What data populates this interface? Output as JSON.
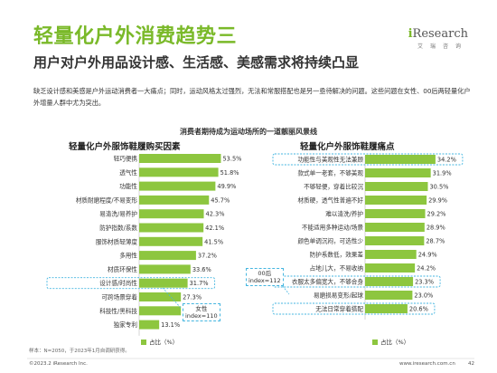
{
  "header": {
    "title": "轻量化户外消费趋势三",
    "subtitle": "用户对户外用品设计感、生活感、美感需求将持续凸显",
    "description": "缺乏设计感和美感是户外运动消费者一大痛点；同时，运动风格太过强烈，无法和常服搭配也是另一亟待解决的问题。这些问题在女性、00后两轻量化户外增量人群中尤为突出。"
  },
  "logo": {
    "brand_prefix": "i",
    "brand_rest": "Research",
    "cn": "艾瑞咨询"
  },
  "center_title": "消费者期待成为运动场所的一道靓丽风景线",
  "callouts": {
    "female": "女性\nindex=110",
    "post00": "00后\nindex=112"
  },
  "legend_label": "占比（%）",
  "note": "样本：N=2050，于2023年1月自调研获得。",
  "footer": {
    "copyright": "©2023.2 iResearch Inc.",
    "url": "www.iresearch.com.cn",
    "page": "42"
  },
  "colors": {
    "accent": "#7ab929",
    "bar": "#8dc63f",
    "highlight": "#45b6e0"
  },
  "chart_data": [
    {
      "type": "bar",
      "orientation": "horizontal",
      "title": "轻量化户外服饰鞋履购买因素",
      "categories": [
        "轻巧便携",
        "透气性",
        "功能性",
        "材质耐磨程度/不易变形",
        "易清洗/易养护",
        "防护指数/系数",
        "服饰材质轻薄度",
        "多用性",
        "材质环保性",
        "设计感/时尚性",
        "可跨场景穿着",
        "科技性/黑科技",
        "独家专利"
      ],
      "series": [
        {
          "name": "占比（%）",
          "values": [
            53.5,
            51.8,
            49.9,
            45.7,
            42.3,
            42.1,
            41.5,
            37.2,
            33.6,
            31.7,
            27.3,
            27.3,
            13.1
          ]
        }
      ],
      "value_labels": [
        "53.5%",
        "51.8%",
        "49.9%",
        "45.7%",
        "42.3%",
        "42.1%",
        "41.5%",
        "37.2%",
        "33.6%",
        "31.7%",
        "27.3%",
        "27.3%",
        "13.1%"
      ],
      "xlim": [
        0,
        55
      ],
      "highlighted": [
        "设计感/时尚性"
      ]
    },
    {
      "type": "bar",
      "orientation": "horizontal",
      "title": "轻量化户外服饰鞋履痛点",
      "categories": [
        "功能性与美观性无法兼顾",
        "款式单一老套，不够美观",
        "不够轻便，穿着比较沉",
        "材质硬，透气性普遍不好",
        "难以清洗/养护",
        "不能适用多种运动/场景",
        "颜色单调沉闷，可选性少",
        "防护系数低，效果差",
        "占地儿大，不易收纳",
        "衣服太多偏宽大，不够合身",
        "易磨损易变形/起球",
        "无法日常穿着搭配"
      ],
      "series": [
        {
          "name": "占比（%）",
          "values": [
            34.2,
            31.9,
            30.5,
            29.9,
            29.2,
            28.9,
            28.7,
            24.9,
            24.2,
            23.3,
            23.0,
            20.6
          ]
        }
      ],
      "value_labels": [
        "34.2%",
        "31.9%",
        "30.5%",
        "29.9%",
        "29.2%",
        "28.9%",
        "28.7%",
        "24.9%",
        "24.2%",
        "23.3%",
        "23.0%",
        "20.6%"
      ],
      "xlim": [
        0,
        36
      ],
      "highlighted": [
        "功能性与美观性无法兼顾",
        "衣服太多偏宽大，不够合身",
        "无法日常穿着搭配"
      ]
    }
  ]
}
